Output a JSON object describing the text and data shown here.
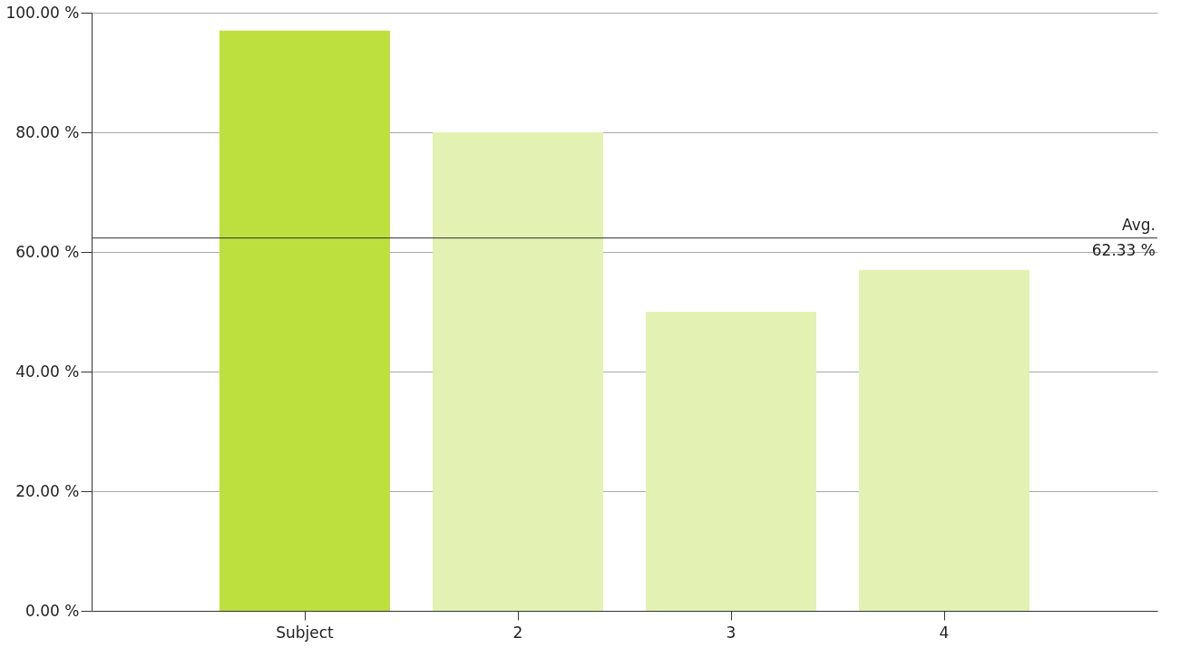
{
  "chart_data": {
    "type": "bar",
    "categories": [
      "Subject",
      "2",
      "3",
      "4"
    ],
    "values": [
      97,
      80,
      50,
      57
    ],
    "colors": [
      "#bee03f",
      "#e3f2b2",
      "#e3f2b2",
      "#e3f2b2"
    ],
    "ylim": [
      0,
      100
    ],
    "yticks": [
      {
        "value": 0,
        "label": "0.00 %"
      },
      {
        "value": 20,
        "label": "20.00 %"
      },
      {
        "value": 40,
        "label": "40.00 %"
      },
      {
        "value": 60,
        "label": "60.00 %"
      },
      {
        "value": 80,
        "label": "80.00 %"
      },
      {
        "value": 100,
        "label": "100.00 %"
      }
    ],
    "ref_lines": [
      {
        "axis": "y",
        "value": 62.33,
        "label": "Avg.\n62.33 %",
        "color": "#333333"
      }
    ],
    "grid": "y"
  }
}
